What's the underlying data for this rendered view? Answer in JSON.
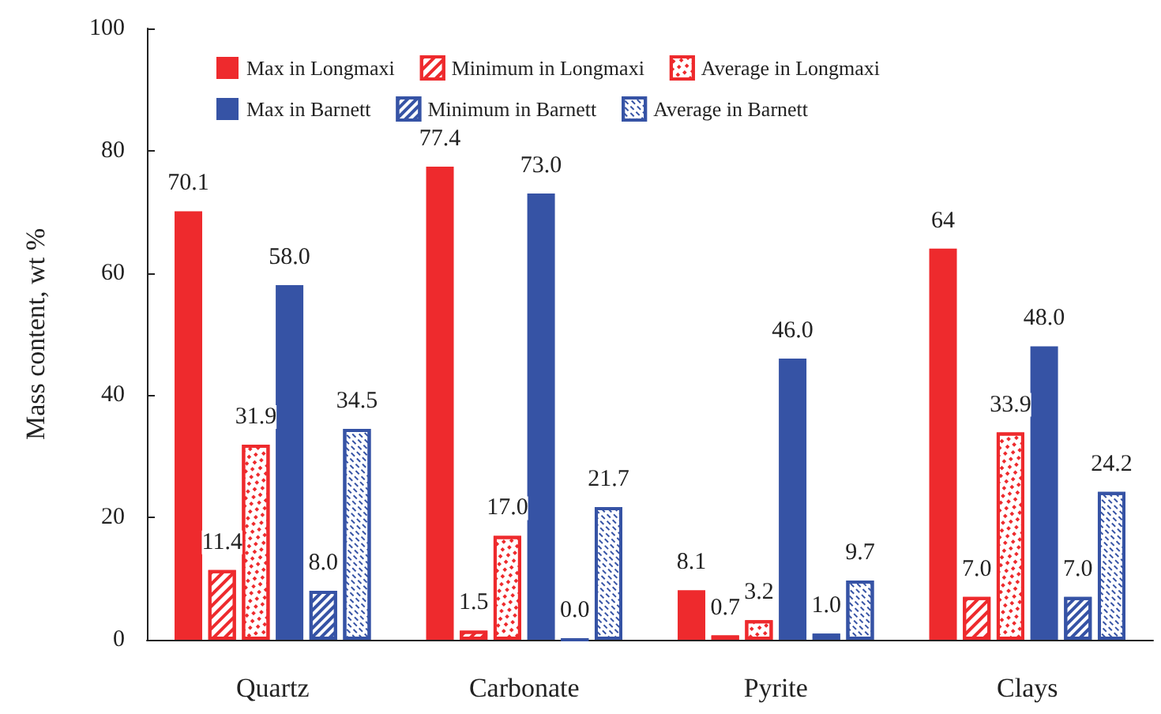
{
  "chart_data": {
    "type": "bar",
    "ylabel": "Mass content, wt %",
    "categories": [
      "Quartz",
      "Carbonate",
      "Pyrite",
      "Clays"
    ],
    "series": [
      {
        "name": "Max in Longmaxi",
        "color": "#ee2a2d",
        "values": [
          70.1,
          77.4,
          8.1,
          64
        ],
        "value_labels": [
          "70.1",
          "77.4",
          "8.1",
          "64"
        ]
      },
      {
        "name": "Minimum in Longmaxi",
        "color": "#ee2a2d",
        "values": [
          11.4,
          1.5,
          0.7,
          7.0
        ],
        "value_labels": [
          "11.4",
          "1.5",
          "0.7",
          "7.0"
        ]
      },
      {
        "name": "Average in Longmaxi",
        "color": "#ee2a2d",
        "values": [
          31.9,
          17.0,
          3.2,
          33.9
        ],
        "value_labels": [
          "31.9",
          "17.0",
          "3.2",
          "33.9"
        ]
      },
      {
        "name": "Max in Barnett",
        "color": "#3653a5",
        "values": [
          58.0,
          73.0,
          46.0,
          48.0
        ],
        "value_labels": [
          "58.0",
          "73.0",
          "46.0",
          "48.0"
        ]
      },
      {
        "name": "Minimum in Barnett",
        "color": "#3653a5",
        "values": [
          8.0,
          0.0,
          1.0,
          7.0
        ],
        "value_labels": [
          "8.0",
          "0.0",
          "1.0",
          "7.0"
        ]
      },
      {
        "name": "Average in Barnett",
        "color": "#3653a5",
        "values": [
          34.5,
          21.7,
          9.7,
          24.2
        ],
        "value_labels": [
          "34.5",
          "21.7",
          "9.7",
          "24.2"
        ]
      }
    ],
    "ylim": [
      0,
      100
    ],
    "yticks": [
      0,
      20,
      40,
      60,
      80,
      100
    ],
    "grid": false,
    "legend": "top"
  }
}
